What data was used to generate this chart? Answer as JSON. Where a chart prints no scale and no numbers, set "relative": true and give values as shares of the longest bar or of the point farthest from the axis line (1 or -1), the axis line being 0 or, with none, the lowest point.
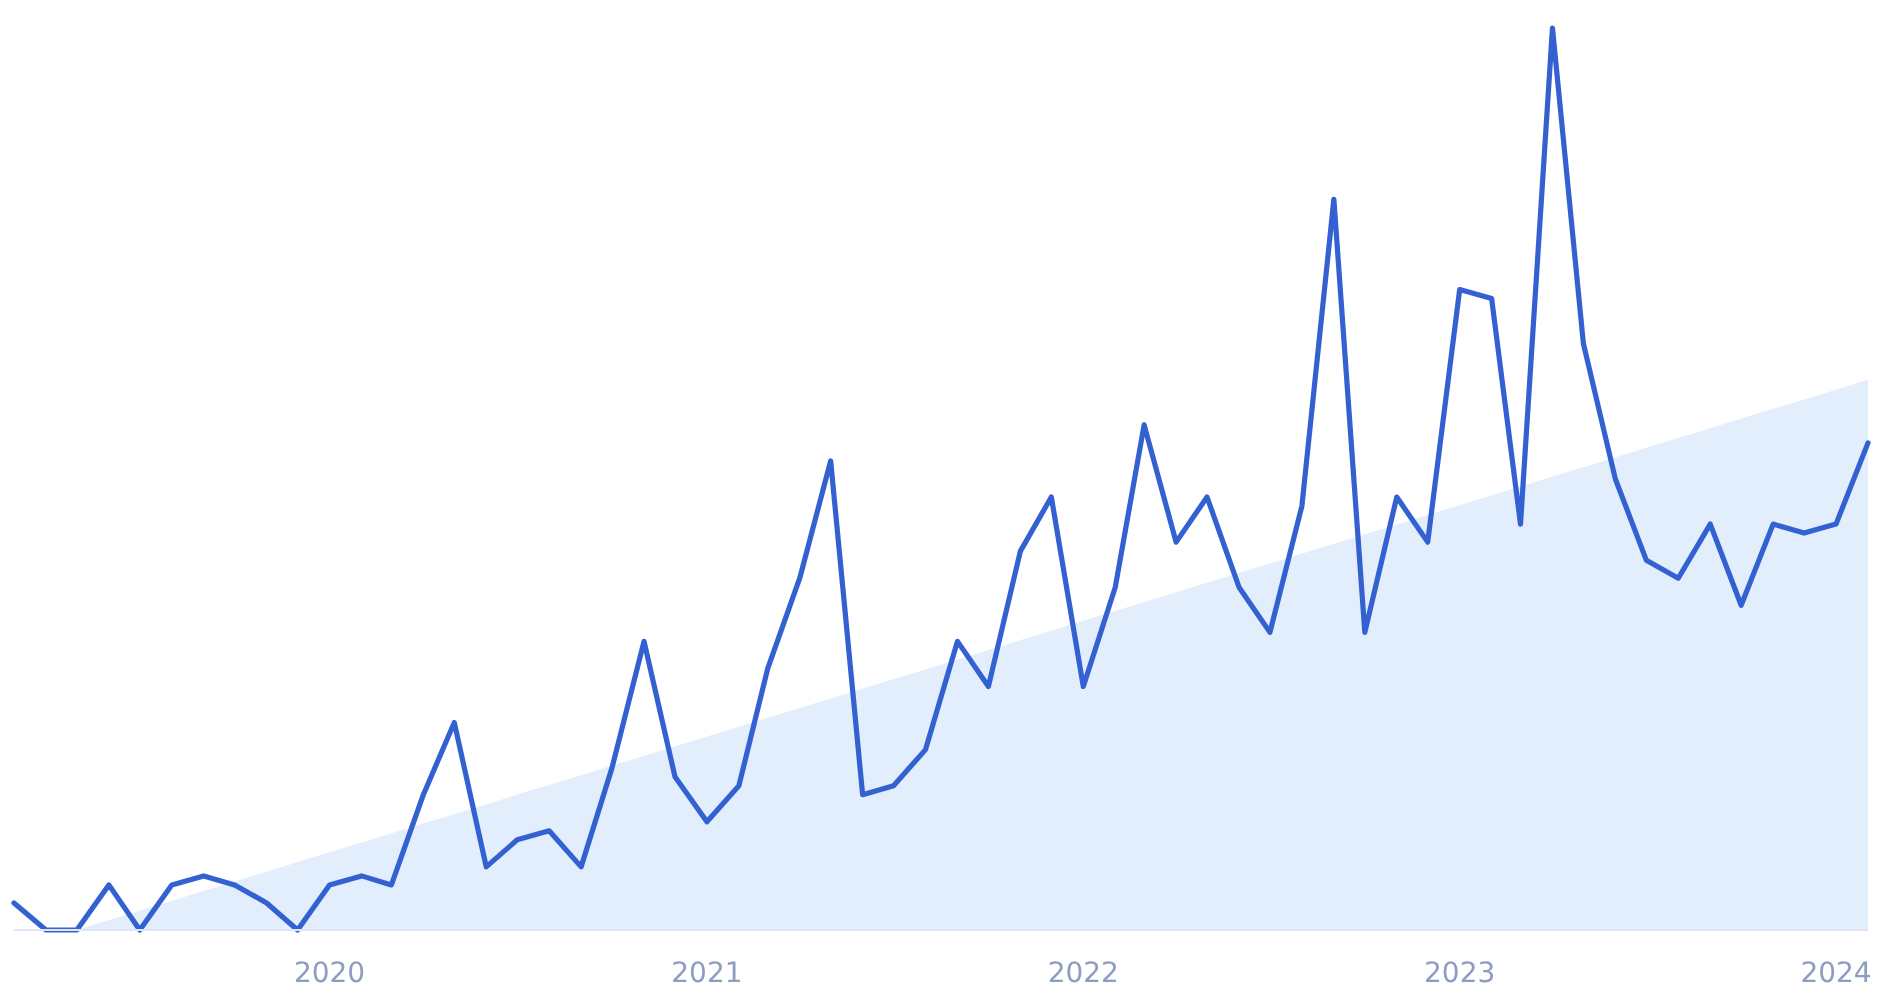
{
  "chart_data": {
    "type": "line",
    "relative": true,
    "xlim": [
      "2019-03",
      "2024-02"
    ],
    "xticks": [
      "2020",
      "2021",
      "2022",
      "2023",
      "2024"
    ],
    "series": [
      {
        "type": "area",
        "color": "#e3eefc",
        "x": [
          "2019-05",
          "2024-02"
        ],
        "values": [
          0,
          0.61
        ]
      },
      {
        "color": "#3461d1",
        "x": [
          "2019-03",
          "2019-04",
          "2019-05",
          "2019-06",
          "2019-07",
          "2019-08",
          "2019-09",
          "2019-10",
          "2019-11",
          "2019-12",
          "2020-01",
          "2020-02",
          "2020-03",
          "2020-04",
          "2020-05",
          "2020-06",
          "2020-07",
          "2020-08",
          "2020-09",
          "2020-10",
          "2020-11",
          "2020-12",
          "2021-01",
          "2021-02",
          "2021-03",
          "2021-04",
          "2021-05",
          "2021-06",
          "2021-07",
          "2021-08",
          "2021-09",
          "2021-10",
          "2021-11",
          "2021-12",
          "2022-01",
          "2022-02",
          "2022-03",
          "2022-04",
          "2022-05",
          "2022-06",
          "2022-07",
          "2022-08",
          "2022-09",
          "2022-10",
          "2022-11",
          "2022-12",
          "2023-01",
          "2023-02",
          "2023-03",
          "2023-04",
          "2023-05",
          "2023-06",
          "2023-07",
          "2023-08",
          "2023-09",
          "2023-10",
          "2023-11",
          "2023-12",
          "2024-01",
          "2024-02"
        ],
        "values": [
          0.03,
          0,
          0,
          0.05,
          0,
          0.05,
          0.06,
          0.05,
          0.03,
          0,
          0.05,
          0.06,
          0.05,
          0.15,
          0.23,
          0.07,
          0.1,
          0.11,
          0.07,
          0.18,
          0.32,
          0.17,
          0.12,
          0.16,
          0.29,
          0.39,
          0.52,
          0.15,
          0.16,
          0.2,
          0.32,
          0.27,
          0.42,
          0.48,
          0.27,
          0.38,
          0.56,
          0.43,
          0.48,
          0.38,
          0.33,
          0.47,
          0.81,
          0.33,
          0.48,
          0.43,
          0.71,
          0.7,
          0.45,
          1,
          0.65,
          0.5,
          0.41,
          0.39,
          0.45,
          0.36,
          0.45,
          0.44,
          0.45,
          0.54
        ]
      }
    ]
  }
}
